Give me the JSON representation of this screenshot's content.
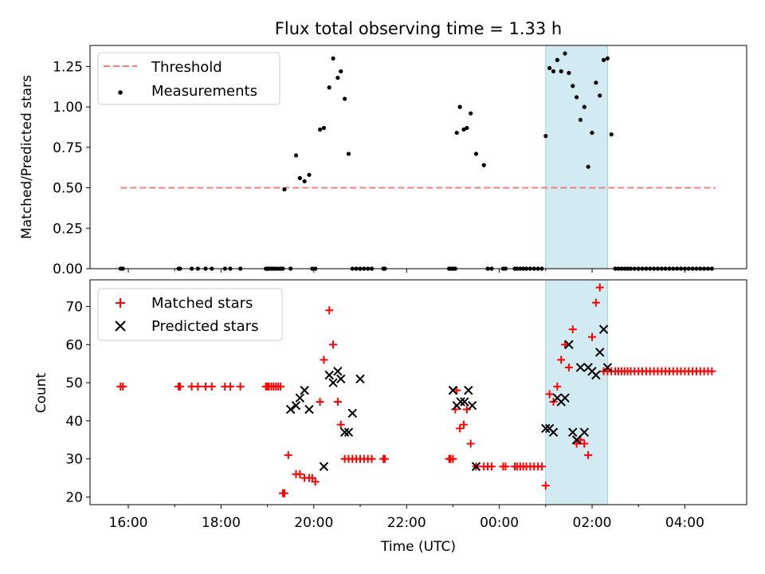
{
  "chart_data": [
    {
      "type": "scatter",
      "title": "Flux total observing time = 1.33 h",
      "ylabel": "Matched/Predicted stars",
      "xlabel": "",
      "x_unit": "time (UTC), day 0 = first date, day 1 = following date",
      "ylim": [
        0,
        1.38
      ],
      "yticks": [
        "0.00",
        "0.25",
        "0.50",
        "0.75",
        "1.00",
        "1.25"
      ],
      "xtick_times": [
        "16:00",
        "18:00",
        "20:00",
        "22:00",
        "00:00",
        "02:00",
        "04:00"
      ],
      "shaded_span": {
        "start": "01:00",
        "end": "02:20",
        "color": "#add8e6"
      },
      "legend": {
        "loc": "upper left",
        "entries": [
          "Threshold",
          "Measurements"
        ]
      },
      "series": [
        {
          "name": "Threshold",
          "kind": "line",
          "style": "dashed",
          "color": "#f08080",
          "x": [
            "15:50",
            "04:40"
          ],
          "y": [
            0.5,
            0.5
          ]
        },
        {
          "name": "Measurements",
          "kind": "points",
          "color": "#000000",
          "x": [
            "15:50",
            "15:53",
            "17:05",
            "17:07",
            "17:22",
            "17:30",
            "17:40",
            "17:48",
            "18:05",
            "18:12",
            "18:25",
            "18:58",
            "19:00",
            "19:02",
            "19:05",
            "19:08",
            "19:11",
            "19:14",
            "19:17",
            "19:20",
            "19:22",
            "19:30",
            "19:37",
            "19:42",
            "19:48",
            "19:54",
            "19:58",
            "20:02",
            "20:08",
            "20:13",
            "20:20",
            "20:25",
            "20:31",
            "20:35",
            "20:40",
            "20:45",
            "20:50",
            "20:55",
            "21:00",
            "21:05",
            "21:10",
            "21:15",
            "21:30",
            "21:32",
            "22:55",
            "22:57",
            "23:00",
            "23:03",
            "23:05",
            "23:09",
            "23:14",
            "23:18",
            "23:23",
            "23:30",
            "23:40",
            "23:45",
            "23:50",
            "00:05",
            "00:08",
            "00:20",
            "00:23",
            "00:27",
            "00:31",
            "00:35",
            "00:40",
            "00:45",
            "00:50",
            "00:55",
            "01:00",
            "01:05",
            "01:10",
            "01:15",
            "01:20",
            "01:25",
            "01:30",
            "01:35",
            "01:40",
            "01:45",
            "01:50",
            "01:55",
            "02:00",
            "02:05",
            "02:10",
            "02:15",
            "02:20",
            "02:25",
            "02:30",
            "02:34",
            "02:38",
            "02:42",
            "02:46",
            "02:50",
            "02:55",
            "03:00",
            "03:05",
            "03:10",
            "03:15",
            "03:20",
            "03:25",
            "03:30",
            "03:35",
            "03:40",
            "03:45",
            "03:50",
            "03:55",
            "04:00",
            "04:05",
            "04:10",
            "04:15",
            "04:20",
            "04:25",
            "04:30",
            "04:35"
          ],
          "y": [
            0,
            0,
            0,
            0,
            0,
            0,
            0,
            0,
            0,
            0,
            0,
            0,
            0,
            0,
            0,
            0,
            0,
            0,
            0,
            0,
            0.49,
            0,
            0.7,
            0.56,
            0.54,
            0.58,
            0,
            0,
            0.86,
            0.87,
            1.12,
            1.3,
            1.18,
            1.22,
            1.05,
            0.71,
            0,
            0,
            0,
            0,
            0,
            0,
            0,
            0,
            0,
            0,
            0,
            0,
            0.84,
            1.0,
            0.86,
            0.87,
            0.96,
            0.71,
            0.64,
            0,
            0,
            0,
            0,
            0,
            0,
            0,
            0,
            0,
            0,
            0,
            0,
            0,
            0.82,
            1.24,
            1.22,
            1.29,
            1.22,
            1.33,
            1.21,
            1.13,
            1.06,
            0.92,
            1.0,
            0.63,
            0.84,
            1.15,
            1.07,
            1.29,
            1.3,
            0.83,
            0,
            0,
            0,
            0,
            0,
            0,
            0,
            0,
            0,
            0,
            0,
            0,
            0,
            0,
            0,
            0,
            0,
            0,
            0,
            0,
            0,
            0,
            0,
            0,
            0,
            0,
            0
          ]
        }
      ]
    },
    {
      "type": "scatter",
      "title": "",
      "xlabel": "Time (UTC)",
      "ylabel": "Count",
      "ylim": [
        18,
        77
      ],
      "yticks": [
        "20",
        "30",
        "40",
        "50",
        "60",
        "70"
      ],
      "xtick_labels": [
        "16:00",
        "18:00",
        "20:00",
        "22:00",
        "00:00",
        "02:00",
        "04:00"
      ],
      "shaded_span": {
        "start": "01:00",
        "end": "02:20",
        "color": "#add8e6"
      },
      "legend": {
        "loc": "upper left",
        "entries": [
          "Matched stars",
          "Predicted stars"
        ]
      },
      "series": [
        {
          "name": "Matched stars",
          "marker": "+",
          "color": "#ff0000",
          "x": [
            "15:50",
            "15:53",
            "17:05",
            "17:07",
            "17:22",
            "17:30",
            "17:40",
            "17:48",
            "18:05",
            "18:12",
            "18:25",
            "18:58",
            "19:00",
            "19:02",
            "19:05",
            "19:08",
            "19:11",
            "19:14",
            "19:17",
            "19:20",
            "19:22",
            "19:27",
            "19:37",
            "19:42",
            "19:48",
            "19:54",
            "19:58",
            "20:02",
            "20:08",
            "20:13",
            "20:20",
            "20:25",
            "20:31",
            "20:35",
            "20:40",
            "20:45",
            "20:50",
            "20:55",
            "21:00",
            "21:05",
            "21:10",
            "21:15",
            "21:30",
            "21:32",
            "22:55",
            "22:57",
            "23:00",
            "23:03",
            "23:05",
            "23:09",
            "23:14",
            "23:18",
            "23:23",
            "23:30",
            "23:40",
            "23:45",
            "23:50",
            "00:05",
            "00:08",
            "00:20",
            "00:23",
            "00:27",
            "00:31",
            "00:35",
            "00:40",
            "00:45",
            "00:50",
            "00:55",
            "01:00",
            "01:05",
            "01:10",
            "01:15",
            "01:20",
            "01:25",
            "01:30",
            "01:35",
            "01:40",
            "01:45",
            "01:50",
            "01:55",
            "02:00",
            "02:05",
            "02:10",
            "02:15",
            "02:20",
            "02:25",
            "02:30",
            "02:34",
            "02:38",
            "02:42",
            "02:46",
            "02:50",
            "02:55",
            "03:00",
            "03:05",
            "03:10",
            "03:15",
            "03:20",
            "03:25",
            "03:30",
            "03:35",
            "03:40",
            "03:45",
            "03:50",
            "03:55",
            "04:00",
            "04:05",
            "04:10",
            "04:15",
            "04:20",
            "04:25",
            "04:30",
            "04:35"
          ],
          "y": [
            49,
            49,
            49,
            49,
            49,
            49,
            49,
            49,
            49,
            49,
            49,
            49,
            49,
            49,
            49,
            49,
            49,
            49,
            49,
            21,
            21,
            31,
            26,
            26,
            25,
            25,
            25,
            24,
            45,
            56,
            69,
            60,
            45,
            39,
            30,
            30,
            30,
            30,
            30,
            30,
            30,
            30,
            30,
            30,
            30,
            30,
            30,
            43,
            48,
            38,
            39,
            43,
            34,
            28,
            28,
            28,
            28,
            28,
            28,
            28,
            28,
            28,
            28,
            28,
            28,
            28,
            28,
            28,
            23,
            47,
            45,
            49,
            56,
            60,
            54,
            64,
            34,
            35,
            34,
            31,
            62,
            71,
            75,
            53,
            53,
            53,
            53,
            53,
            53,
            53,
            53,
            53,
            53,
            53,
            53,
            53,
            53,
            53,
            53,
            53,
            53,
            53,
            53,
            53,
            53,
            53,
            53,
            53,
            53,
            53,
            53,
            53,
            53
          ]
        },
        {
          "name": "Predicted stars",
          "marker": "x",
          "color": "#000000",
          "x": [
            "19:30",
            "19:37",
            "19:42",
            "19:48",
            "19:54",
            "20:13",
            "20:20",
            "20:25",
            "20:31",
            "20:35",
            "20:40",
            "20:45",
            "20:50",
            "21:00",
            "23:00",
            "23:05",
            "23:10",
            "23:15",
            "23:20",
            "23:25",
            "23:30",
            "01:00",
            "01:05",
            "01:10",
            "01:15",
            "01:20",
            "01:25",
            "01:30",
            "01:35",
            "01:40",
            "01:45",
            "01:50",
            "01:55",
            "02:00",
            "02:05",
            "02:10",
            "02:15",
            "02:20"
          ],
          "y": [
            43,
            44,
            46,
            48,
            43,
            28,
            52,
            50,
            53,
            51,
            37,
            37,
            42,
            51,
            48,
            44,
            45,
            45,
            48,
            44,
            28,
            38,
            38,
            37,
            46,
            45,
            46,
            60,
            37,
            35,
            54,
            37,
            54,
            53,
            52,
            58,
            64,
            54
          ]
        }
      ]
    }
  ]
}
